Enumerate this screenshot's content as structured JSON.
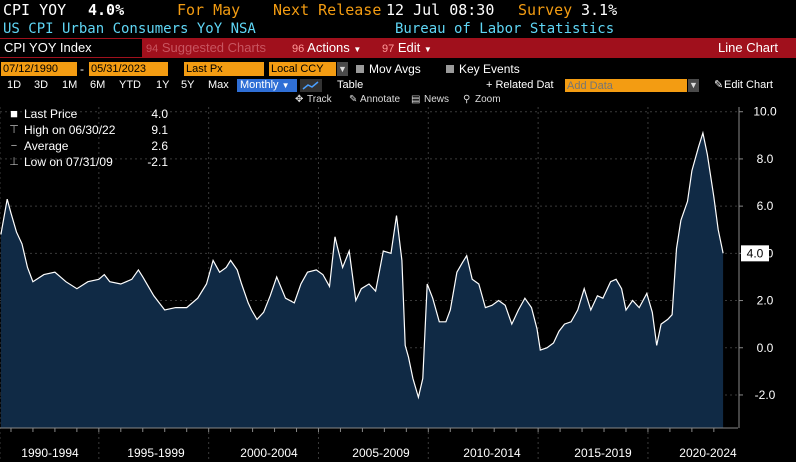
{
  "header": {
    "ticker": "CPI YOY",
    "value": "4.0%",
    "period_label": "For May",
    "next_release_label": "Next Release",
    "next_release_value": "12 Jul 08:30",
    "survey_label": "Survey",
    "survey_value": "3.1%",
    "description": "US CPI Urban Consumers YoY NSA",
    "source": "Bureau of Labor Statistics"
  },
  "toolbar": {
    "security": "CPI YOY Index",
    "suggested_num": "94",
    "suggested_label": "Suggested Charts",
    "actions_num": "96",
    "actions_label": "Actions",
    "edit_num": "97",
    "edit_label": "Edit",
    "chart_type": "Line Chart"
  },
  "range": {
    "start": "07/12/1990",
    "end": "05/31/2023",
    "field": "Last Px",
    "currency": "Local CCY",
    "mov_avgs": "Mov Avgs",
    "key_events": "Key Events"
  },
  "periods": [
    "1D",
    "3D",
    "1M",
    "6M",
    "YTD",
    "1Y",
    "5Y",
    "Max"
  ],
  "frequency": "Monthly",
  "table_label": "Table",
  "related_data_label": "+ Related Dat",
  "add_data_placeholder": "Add Data",
  "edit_chart_label": "Edit Chart",
  "tools": [
    "Track",
    "Annotate",
    "News",
    "Zoom"
  ],
  "legend": {
    "last_label": "Last Price",
    "last_value": "4.0",
    "high_label": "High on 06/30/22",
    "high_value": "9.1",
    "avg_label": "Average",
    "avg_value": "2.6",
    "low_label": "Low on 07/31/09",
    "low_value": "-2.1"
  },
  "colors": {
    "area_fill": "#102a45",
    "line": "#ffffff",
    "accent": "#f39c12",
    "toolbar": "#a0101c"
  },
  "chart_data": {
    "type": "area",
    "title": "CPI YOY Index",
    "x_period_labels": [
      "1990-1994",
      "1995-1999",
      "2000-2004",
      "2005-2009",
      "2010-2014",
      "2015-2019",
      "2020-2024"
    ],
    "y_ticks": [
      "10.0",
      "8.0",
      "6.0",
      "4.0",
      "2.0",
      "0.0",
      "-2.0"
    ],
    "ylim": [
      -3.4,
      10.2
    ],
    "xlim": [
      1990.5,
      2024.1
    ],
    "last_value_tag": "4.0",
    "series": [
      {
        "x": [
          1990.54,
          1990.83,
          1991.0,
          1991.25,
          1991.5,
          1991.75,
          1992.0,
          1992.5,
          1993.0,
          1993.5,
          1994.0,
          1994.5,
          1995.0,
          1995.25,
          1995.5,
          1996.0,
          1996.5,
          1996.8,
          1997.0,
          1997.5,
          1998.0,
          1998.5,
          1999.0,
          1999.5,
          1999.9,
          2000.2,
          2000.5,
          2000.8,
          2001.0,
          2001.3,
          2001.5,
          2001.8,
          2001.95,
          2002.2,
          2002.5,
          2002.8,
          2003.1,
          2003.5,
          2003.9,
          2004.2,
          2004.5,
          2004.9,
          2005.2,
          2005.5,
          2005.75,
          2005.85,
          2006.1,
          2006.4,
          2006.7,
          2006.95,
          2007.3,
          2007.6,
          2007.95,
          2008.3,
          2008.55,
          2008.8,
          2008.95,
          2009.1,
          2009.3,
          2009.55,
          2009.75,
          2009.95,
          2010.2,
          2010.5,
          2010.8,
          2011.0,
          2011.3,
          2011.55,
          2011.75,
          2012.0,
          2012.3,
          2012.6,
          2012.9,
          2013.2,
          2013.5,
          2013.8,
          2014.1,
          2014.4,
          2014.7,
          2014.95,
          2015.1,
          2015.4,
          2015.7,
          2015.95,
          2016.2,
          2016.5,
          2016.8,
          2017.1,
          2017.4,
          2017.7,
          2017.95,
          2018.3,
          2018.55,
          2018.8,
          2019.0,
          2019.3,
          2019.6,
          2019.95,
          2020.2,
          2020.4,
          2020.6,
          2020.9,
          2021.1,
          2021.3,
          2021.5,
          2021.8,
          2022.0,
          2022.3,
          2022.5,
          2022.7,
          2023.0,
          2023.2,
          2023.42
        ],
        "y": [
          4.8,
          6.3,
          5.7,
          4.9,
          4.4,
          3.4,
          2.8,
          3.1,
          3.2,
          2.8,
          2.5,
          2.8,
          2.9,
          3.1,
          2.8,
          2.7,
          2.9,
          3.3,
          3.0,
          2.2,
          1.6,
          1.7,
          1.7,
          2.1,
          2.7,
          3.7,
          3.2,
          3.4,
          3.7,
          3.3,
          2.7,
          1.9,
          1.6,
          1.2,
          1.5,
          2.2,
          3.0,
          2.1,
          1.9,
          2.7,
          3.2,
          3.3,
          3.1,
          2.6,
          4.7,
          4.3,
          3.4,
          4.1,
          2.0,
          2.5,
          2.7,
          2.4,
          4.1,
          4.0,
          5.6,
          3.7,
          0.1,
          -0.4,
          -1.3,
          -2.1,
          -1.3,
          2.7,
          2.1,
          1.1,
          1.1,
          1.6,
          3.2,
          3.6,
          3.9,
          2.9,
          2.7,
          1.7,
          1.8,
          2.0,
          1.8,
          1.0,
          1.6,
          2.1,
          1.7,
          0.8,
          -0.1,
          0.0,
          0.2,
          0.7,
          1.0,
          1.1,
          1.6,
          2.5,
          1.6,
          2.2,
          2.1,
          2.8,
          2.9,
          2.5,
          1.6,
          2.0,
          1.7,
          2.3,
          1.5,
          0.1,
          1.0,
          1.2,
          1.4,
          4.2,
          5.4,
          6.2,
          7.5,
          8.5,
          9.1,
          8.2,
          6.4,
          5.0,
          4.0
        ]
      }
    ]
  }
}
